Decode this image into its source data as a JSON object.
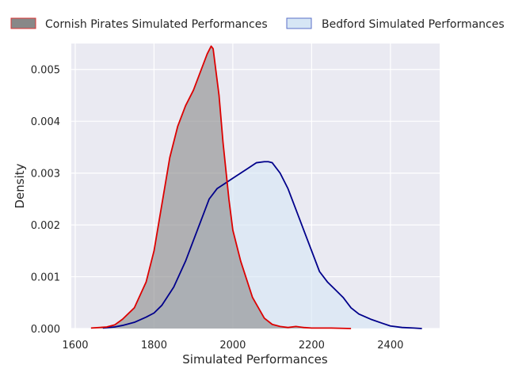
{
  "chart_data": {
    "type": "area",
    "title": "",
    "xlabel": "Simulated Performances",
    "ylabel": "Density",
    "xlim": [
      1590,
      2525
    ],
    "ylim": [
      0,
      0.0055
    ],
    "x_ticks": [
      1600,
      1800,
      2000,
      2200,
      2400
    ],
    "x_tick_labels": [
      "1600",
      "1800",
      "2000",
      "2200",
      "2400"
    ],
    "y_ticks": [
      0,
      0.001,
      0.002,
      0.003,
      0.004,
      0.005
    ],
    "y_tick_labels": [
      "0.000",
      "0.001",
      "0.002",
      "0.003",
      "0.004",
      "0.005"
    ],
    "grid": true,
    "legend_position": "top",
    "series": [
      {
        "name": "Cornish Pirates Simulated Performances",
        "fill": "#888888",
        "line": "#dd0000",
        "fill_opacity": 0.6,
        "x": [
          1640,
          1680,
          1700,
          1720,
          1750,
          1780,
          1800,
          1820,
          1840,
          1860,
          1880,
          1900,
          1920,
          1935,
          1945,
          1950,
          1955,
          1965,
          1975,
          1990,
          2000,
          2020,
          2050,
          2080,
          2100,
          2120,
          2140,
          2160,
          2180,
          2200,
          2250,
          2300
        ],
        "y": [
          1e-05,
          3e-05,
          7e-05,
          0.00018,
          0.0004,
          0.0009,
          0.0015,
          0.0024,
          0.0033,
          0.0039,
          0.0043,
          0.0046,
          0.005,
          0.0053,
          0.00545,
          0.0054,
          0.0051,
          0.0045,
          0.0036,
          0.0025,
          0.0019,
          0.0013,
          0.0006,
          0.0002,
          8e-05,
          4e-05,
          2e-05,
          4e-05,
          2e-05,
          1e-05,
          1e-05,
          0
        ]
      },
      {
        "name": "Bedford Simulated Performances",
        "fill": "#d6e6f5",
        "line": "#00008b",
        "fill_opacity": 0.6,
        "x": [
          1670,
          1700,
          1720,
          1750,
          1780,
          1800,
          1820,
          1850,
          1880,
          1900,
          1920,
          1940,
          1960,
          1980,
          2000,
          2020,
          2040,
          2060,
          2080,
          2090,
          2100,
          2120,
          2140,
          2160,
          2180,
          2200,
          2220,
          2240,
          2260,
          2280,
          2300,
          2320,
          2350,
          2380,
          2400,
          2430,
          2460,
          2480
        ],
        "y": [
          1e-05,
          3e-05,
          6e-05,
          0.00012,
          0.00022,
          0.0003,
          0.00045,
          0.0008,
          0.0013,
          0.0017,
          0.0021,
          0.0025,
          0.0027,
          0.0028,
          0.0029,
          0.003,
          0.0031,
          0.0032,
          0.00322,
          0.00322,
          0.0032,
          0.003,
          0.0027,
          0.0023,
          0.0019,
          0.0015,
          0.0011,
          0.0009,
          0.00075,
          0.0006,
          0.0004,
          0.00028,
          0.00018,
          0.0001,
          5e-05,
          2e-05,
          1e-05,
          0
        ]
      }
    ]
  }
}
